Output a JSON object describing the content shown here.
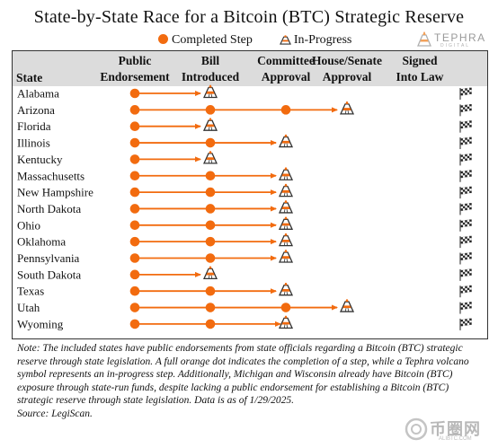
{
  "title": "State-by-State Race for a Bitcoin (BTC) Strategic Reserve",
  "legend": {
    "completed": "Completed Step",
    "in_progress": "In-Progress"
  },
  "logo": {
    "name": "TEPHRA",
    "sub": "DIGITAL"
  },
  "colors": {
    "orange": "#f26b0f",
    "header_bg": "#dcdcdc",
    "volcano_dark": "#333333"
  },
  "icons": {
    "in_progress": "volcano-icon",
    "finish": "checkered-flag-icon"
  },
  "header": {
    "state": "State"
  },
  "chart_data": {
    "type": "table",
    "title": "State-by-State Race for a Bitcoin (BTC) Strategic Reserve",
    "steps": [
      "Public Endorsement",
      "Bill Introduced",
      "Committee Approval",
      "House/Senate Approval",
      "Signed Into Law"
    ],
    "step_labels": [
      [
        "Public",
        "Endorsement"
      ],
      [
        "Bill",
        "Introduced"
      ],
      [
        "Committee",
        "Approval"
      ],
      [
        "House/Senate",
        "Approval"
      ],
      [
        "Signed",
        "Into Law"
      ]
    ],
    "states": [
      {
        "name": "Alabama",
        "completed": 1,
        "in_progress": 2
      },
      {
        "name": "Arizona",
        "completed": 3,
        "in_progress": 4
      },
      {
        "name": "Florida",
        "completed": 1,
        "in_progress": 2
      },
      {
        "name": "Illinois",
        "completed": 2,
        "in_progress": 3
      },
      {
        "name": "Kentucky",
        "completed": 1,
        "in_progress": 2
      },
      {
        "name": "Massachusetts",
        "completed": 2,
        "in_progress": 3
      },
      {
        "name": "New Hampshire",
        "completed": 2,
        "in_progress": 3
      },
      {
        "name": "North Dakota",
        "completed": 2,
        "in_progress": 3
      },
      {
        "name": "Ohio",
        "completed": 2,
        "in_progress": 3
      },
      {
        "name": "Oklahoma",
        "completed": 2,
        "in_progress": 3
      },
      {
        "name": "Pennsylvania",
        "completed": 2,
        "in_progress": 3
      },
      {
        "name": "South Dakota",
        "completed": 1,
        "in_progress": 2
      },
      {
        "name": "Texas",
        "completed": 2,
        "in_progress": 3
      },
      {
        "name": "Utah",
        "completed": 3,
        "in_progress": 4
      },
      {
        "name": "Wyoming",
        "completed": 3,
        "in_progress": 3
      }
    ]
  },
  "note": "Note: The included states have public endorsements from state officials regarding a Bitcoin (BTC) strategic reserve through state legislation. A full orange dot indicates the completion of a step, while a Tephra volcano symbol represents an in-progress step. Additionally, Michigan and Wisconsin already have Bitcoin (BTC) exposure through state-run funds, despite lacking a public endorsement for establishing a Bitcoin (BTC) strategic reserve through state legislation. Data is as of 1/29/2025.",
  "source": "Source: LegiScan.",
  "watermark": {
    "big": "币圈网",
    "small": "ALIBTC.COM"
  }
}
